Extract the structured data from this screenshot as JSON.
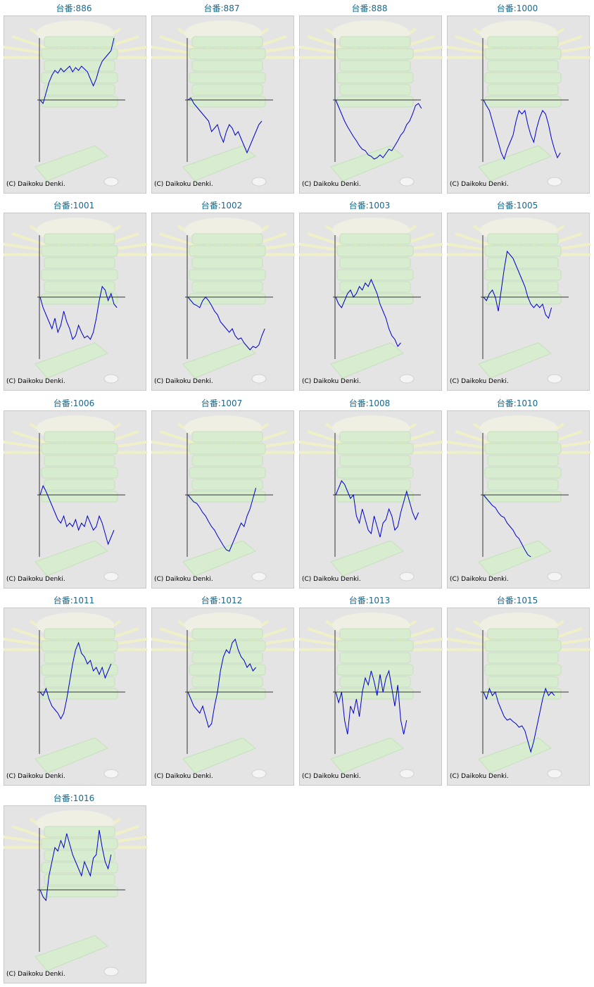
{
  "chart_data": [
    {
      "type": "line",
      "title": "台番:886",
      "credit": "(C) Daikoku Denki.",
      "color": "#0000cc",
      "ylim": [
        -88,
        88
      ],
      "values": [
        0,
        -5,
        10,
        25,
        35,
        42,
        38,
        45,
        40,
        44,
        48,
        40,
        46,
        42,
        48,
        44,
        40,
        30,
        20,
        30,
        45,
        55,
        60,
        65,
        70,
        88
      ]
    },
    {
      "type": "line",
      "title": "台番:887",
      "credit": "(C) Daikoku Denki.",
      "color": "#0000cc",
      "ylim": [
        -88,
        88
      ],
      "values": [
        0,
        3,
        -5,
        -10,
        -15,
        -20,
        -25,
        -30,
        -45,
        -40,
        -35,
        -50,
        -60,
        -45,
        -35,
        -40,
        -50,
        -45,
        -55,
        -65,
        -75,
        -65,
        -55,
        -45,
        -35,
        -30
      ]
    },
    {
      "type": "line",
      "title": "台番:888",
      "credit": "(C) Daikoku Denki.",
      "color": "#0000cc",
      "ylim": [
        -88,
        88
      ],
      "values": [
        0,
        -10,
        -20,
        -30,
        -38,
        -45,
        -52,
        -58,
        -65,
        -70,
        -72,
        -78,
        -80,
        -84,
        -82,
        -78,
        -82,
        -76,
        -70,
        -72,
        -65,
        -58,
        -50,
        -45,
        -35,
        -30,
        -20,
        -8,
        -5,
        -12
      ]
    },
    {
      "type": "line",
      "title": "台番:1000",
      "credit": "(C) Daikoku Denki.",
      "color": "#0000cc",
      "ylim": [
        -88,
        88
      ],
      "values": [
        0,
        -8,
        -15,
        -30,
        -45,
        -60,
        -75,
        -84,
        -70,
        -60,
        -50,
        -30,
        -15,
        -20,
        -15,
        -35,
        -50,
        -60,
        -40,
        -25,
        -15,
        -20,
        -35,
        -55,
        -70,
        -82,
        -75
      ]
    },
    {
      "type": "line",
      "title": "台番:1001",
      "credit": "(C) Daikoku Denki.",
      "color": "#0000cc",
      "ylim": [
        -88,
        88
      ],
      "values": [
        0,
        -15,
        -25,
        -35,
        -45,
        -30,
        -50,
        -40,
        -20,
        -35,
        -45,
        -60,
        -55,
        -40,
        -50,
        -58,
        -55,
        -60,
        -50,
        -30,
        -5,
        15,
        10,
        -5,
        5,
        -10,
        -15
      ]
    },
    {
      "type": "line",
      "title": "台番:1002",
      "credit": "(C) Daikoku Denki.",
      "color": "#0000cc",
      "ylim": [
        -88,
        88
      ],
      "values": [
        0,
        -5,
        -10,
        -12,
        -15,
        -5,
        0,
        -5,
        -12,
        -20,
        -25,
        -35,
        -40,
        -45,
        -50,
        -45,
        -55,
        -60,
        -58,
        -65,
        -70,
        -75,
        -70,
        -72,
        -68,
        -55,
        -45
      ]
    },
    {
      "type": "line",
      "title": "台番:1003",
      "credit": "(C) Daikoku Denki.",
      "color": "#0000cc",
      "ylim": [
        -88,
        88
      ],
      "values": [
        0,
        -10,
        -15,
        -5,
        5,
        10,
        0,
        5,
        15,
        10,
        20,
        15,
        25,
        15,
        5,
        -10,
        -20,
        -30,
        -45,
        -55,
        -60,
        -70,
        -65
      ]
    },
    {
      "type": "line",
      "title": "台番:1005",
      "credit": "(C) Daikoku Denki.",
      "color": "#0000cc",
      "ylim": [
        -88,
        88
      ],
      "values": [
        0,
        -5,
        5,
        10,
        0,
        -20,
        10,
        40,
        65,
        60,
        55,
        45,
        35,
        25,
        15,
        0,
        -10,
        -15,
        -10,
        -15,
        -10,
        -25,
        -30,
        -15
      ]
    },
    {
      "type": "line",
      "title": "台番:1006",
      "credit": "(C) Daikoku Denki.",
      "color": "#0000cc",
      "ylim": [
        -88,
        88
      ],
      "values": [
        0,
        13,
        5,
        -5,
        -15,
        -25,
        -35,
        -40,
        -30,
        -45,
        -40,
        -45,
        -35,
        -50,
        -40,
        -45,
        -30,
        -40,
        -50,
        -45,
        -30,
        -40,
        -55,
        -70,
        -60,
        -50
      ]
    },
    {
      "type": "line",
      "title": "台番:1007",
      "credit": "(C) Daikoku Denki.",
      "color": "#0000cc",
      "ylim": [
        -88,
        88
      ],
      "values": [
        0,
        -5,
        -10,
        -12,
        -18,
        -25,
        -30,
        -38,
        -45,
        -50,
        -58,
        -65,
        -72,
        -78,
        -80,
        -70,
        -60,
        -50,
        -40,
        -45,
        -30,
        -20,
        -5,
        10
      ]
    },
    {
      "type": "line",
      "title": "台番:1008",
      "credit": "(C) Daikoku Denki.",
      "color": "#0000cc",
      "ylim": [
        -88,
        88
      ],
      "values": [
        0,
        10,
        20,
        15,
        5,
        -5,
        0,
        -30,
        -40,
        -20,
        -35,
        -50,
        -55,
        -30,
        -45,
        -60,
        -40,
        -35,
        -20,
        -30,
        -50,
        -45,
        -25,
        -10,
        5,
        -10,
        -25,
        -35,
        -25
      ]
    },
    {
      "type": "line",
      "title": "台番:1010",
      "credit": "(C) Daikoku Denki.",
      "color": "#0000cc",
      "ylim": [
        -88,
        88
      ],
      "values": [
        0,
        -5,
        -10,
        -15,
        -18,
        -25,
        -30,
        -32,
        -40,
        -45,
        -50,
        -58,
        -62,
        -70,
        -78,
        -85,
        -88
      ]
    },
    {
      "type": "line",
      "title": "台番:1011",
      "credit": "(C) Daikoku Denki.",
      "color": "#0000cc",
      "ylim": [
        -88,
        88
      ],
      "values": [
        0,
        -5,
        5,
        -10,
        -20,
        -25,
        -30,
        -38,
        -30,
        -10,
        15,
        40,
        60,
        70,
        55,
        50,
        40,
        45,
        30,
        35,
        25,
        35,
        20,
        30,
        40
      ]
    },
    {
      "type": "line",
      "title": "台番:1012",
      "credit": "(C) Daikoku Denki.",
      "color": "#0000cc",
      "ylim": [
        -88,
        88
      ],
      "values": [
        0,
        -10,
        -20,
        -25,
        -30,
        -20,
        -35,
        -50,
        -45,
        -20,
        0,
        30,
        50,
        60,
        55,
        70,
        75,
        60,
        50,
        45,
        35,
        40,
        30,
        35
      ]
    },
    {
      "type": "line",
      "title": "台番:1013",
      "credit": "(C) Daikoku Denki.",
      "color": "#0000cc",
      "ylim": [
        -88,
        88
      ],
      "values": [
        0,
        -15,
        0,
        -40,
        -60,
        -20,
        -30,
        -10,
        -35,
        0,
        20,
        10,
        30,
        15,
        -5,
        25,
        0,
        20,
        30,
        5,
        -20,
        10,
        -40,
        -60,
        -40
      ]
    },
    {
      "type": "line",
      "title": "台番:1015",
      "credit": "(C) Daikoku Denki.",
      "color": "#0000cc",
      "ylim": [
        -88,
        88
      ],
      "values": [
        0,
        -10,
        5,
        -5,
        0,
        -15,
        -25,
        -35,
        -40,
        -38,
        -42,
        -45,
        -50,
        -48,
        -55,
        -70,
        -85,
        -70,
        -50,
        -30,
        -10,
        5,
        -5,
        0,
        -5
      ]
    },
    {
      "type": "line",
      "title": "台番:1016",
      "credit": "(C) Daikoku Denki.",
      "color": "#0000cc",
      "ylim": [
        -88,
        88
      ],
      "values": [
        0,
        -10,
        -15,
        20,
        40,
        60,
        55,
        70,
        60,
        80,
        65,
        50,
        40,
        30,
        20,
        40,
        30,
        20,
        45,
        50,
        85,
        60,
        40,
        30,
        50
      ]
    }
  ]
}
